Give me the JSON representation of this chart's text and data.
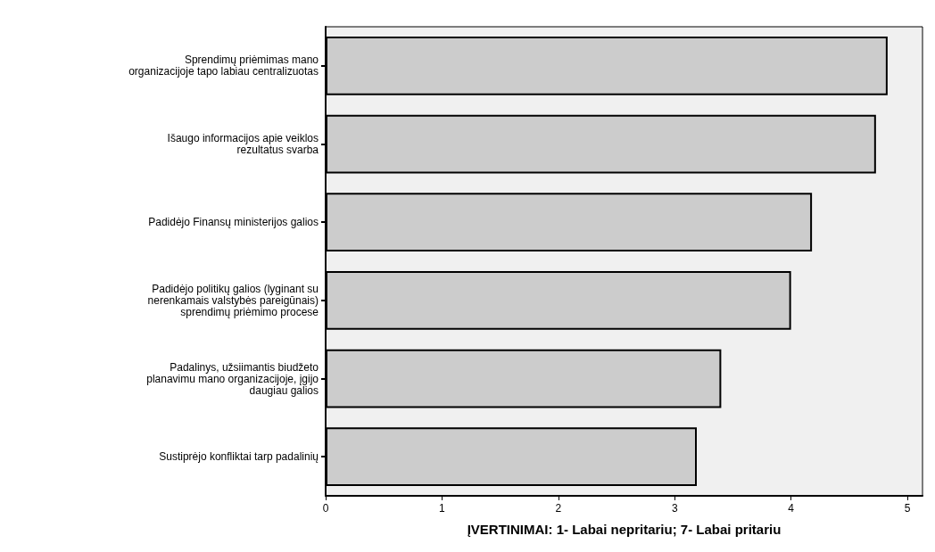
{
  "chart_data": {
    "type": "bar",
    "orientation": "horizontal",
    "xlabel": "ĮVERTINIMAI: 1- Labai nepritariu; 7- Labai pritariu",
    "categories": [
      "Sprendimų priėmimas mano\norganizacijoje tapo labiau centralizuotas",
      "Išaugo informacijos apie veiklos\nrezultatus svarba",
      "Padidėjo Finansų ministerijos galios",
      "Padidėjo politikų galios (lyginant su\nnerenkamais valstybės pareigūnais)\nsprendimų priėmimo procese",
      "Padalinys, užsiimantis biudžeto\nplanavimu mano organizacijoje, įgijo\ndaugiau galios",
      "Sustiprėjo konfliktai tarp padalinių"
    ],
    "values": [
      4.83,
      4.73,
      4.18,
      4.0,
      3.4,
      3.19
    ],
    "colors": [
      "#cccccc",
      "#cccccc",
      "#cccccc",
      "#cccccc",
      "#cccccc",
      "#cccccc"
    ],
    "xlim": [
      0,
      5.13
    ],
    "xticks": [
      0,
      1,
      2,
      3,
      4,
      5
    ],
    "grid": false
  }
}
